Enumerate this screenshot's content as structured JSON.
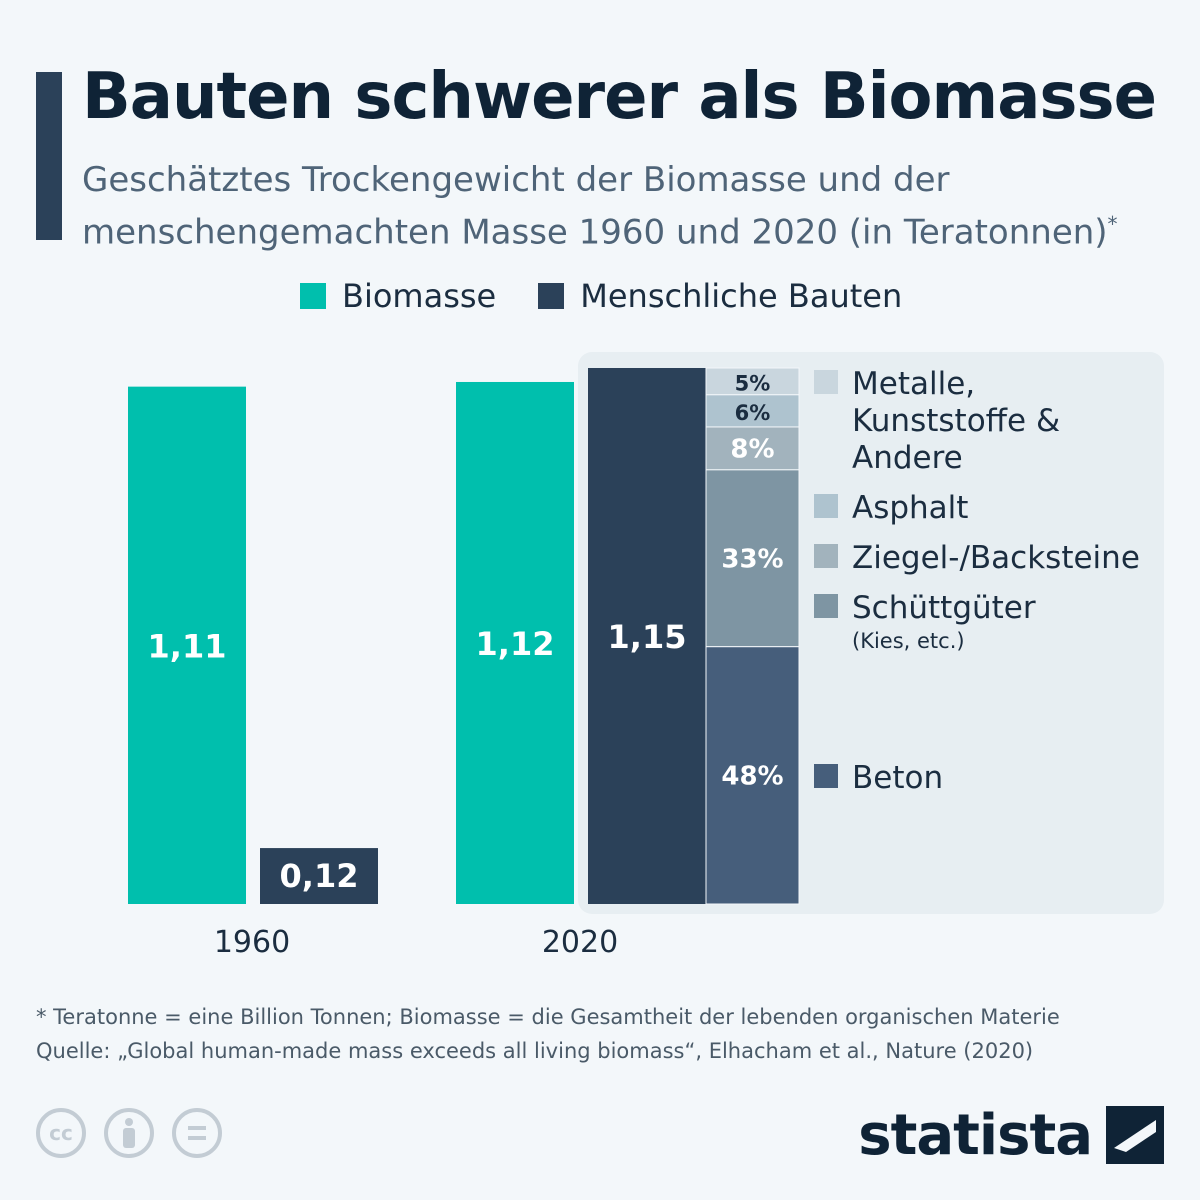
{
  "title": "Bauten schwerer als Biomasse",
  "subtitle_line1": "Geschätztes Trockengewicht der Biomasse und der",
  "subtitle_line2": "menschengemachten Masse 1960 und 2020 (in Teratonnen)",
  "subtitle_mark": "*",
  "legend": [
    {
      "label": "Biomasse",
      "color": "#00bfad"
    },
    {
      "label": "Menschliche Bauten",
      "color": "#2b4159"
    }
  ],
  "chart_data": {
    "type": "bar",
    "categories": [
      "1960",
      "2020"
    ],
    "series": [
      {
        "name": "Biomasse",
        "values": [
          1.11,
          1.12
        ],
        "labels": [
          "1,11",
          "1,12"
        ],
        "color": "#00bfad"
      },
      {
        "name": "Menschliche Bauten",
        "values": [
          0.12,
          1.15
        ],
        "labels": [
          "0,12",
          "1,15"
        ],
        "color": "#2b4159"
      }
    ],
    "breakdown_2020": [
      {
        "label": "Metalle, Kunststoffe & Andere",
        "lines": [
          "Metalle,",
          "Kunststoffe &",
          "Andere"
        ],
        "percent": 5,
        "value_label": "5%",
        "color": "#c9d6de",
        "text_color": "#1b2d40"
      },
      {
        "label": "Asphalt",
        "lines": [
          "Asphalt"
        ],
        "percent": 6,
        "value_label": "6%",
        "color": "#aec3cf",
        "text_color": "#1b2d40"
      },
      {
        "label": "Ziegel-/Backsteine",
        "lines": [
          "Ziegel-/Backsteine"
        ],
        "percent": 8,
        "value_label": "8%",
        "color": "#a2b3bd",
        "text_color": "#ffffff"
      },
      {
        "label": "Schüttgüter",
        "lines": [
          "Schüttgüter"
        ],
        "sublabel": "(Kies, etc.)",
        "percent": 33,
        "value_label": "33%",
        "color": "#7e95a3",
        "text_color": "#ffffff"
      },
      {
        "label": "Beton",
        "lines": [
          "Beton"
        ],
        "percent": 48,
        "value_label": "48%",
        "color": "#465e7b",
        "text_color": "#ffffff"
      }
    ]
  },
  "footnote_line1": "* Teratonne = eine Billion Tonnen; Biomasse = die Gesamtheit der lebenden organischen Materie",
  "footnote_line2": "Quelle: „Global human-made mass exceeds all living biomass“, Elhacham et al., Nature (2020)",
  "cc_label": "cc",
  "brand": "statista"
}
